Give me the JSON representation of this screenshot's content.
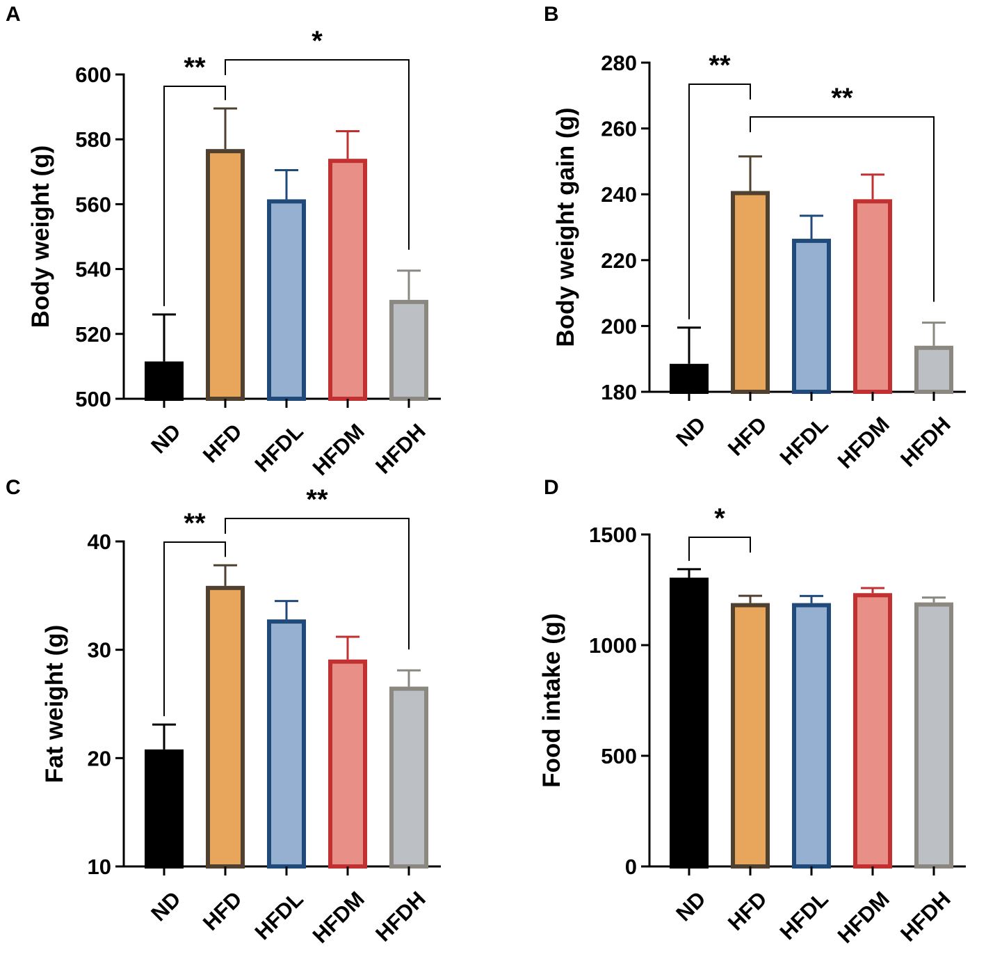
{
  "colors": {
    "ND": {
      "fill": "#000000",
      "stroke": "#000000"
    },
    "HFD": {
      "fill": "#E8A55C",
      "stroke": "#4F4030"
    },
    "HFDL": {
      "fill": "#96B0D2",
      "stroke": "#1F4A7A"
    },
    "HFDM": {
      "fill": "#E89088",
      "stroke": "#C23131"
    },
    "HFDH": {
      "fill": "#BCC0C4",
      "stroke": "#8A8880"
    }
  },
  "chart_data": [
    {
      "panel": "A",
      "type": "bar",
      "categories": [
        "ND",
        "HFD",
        "HFDL",
        "HFDM",
        "HFDH"
      ],
      "values": [
        511.5,
        577,
        561.5,
        574,
        530.5
      ],
      "errors": [
        14.5,
        12.5,
        9,
        8.5,
        9
      ],
      "ylabel": "Body weight (g)",
      "ylim": [
        500,
        600
      ],
      "yticks": [
        500,
        520,
        540,
        560,
        580,
        600
      ],
      "significance": [
        {
          "from": 0,
          "to": 1,
          "label": "**"
        },
        {
          "from": 1,
          "to": 4,
          "label": "*"
        }
      ]
    },
    {
      "panel": "B",
      "type": "bar",
      "categories": [
        "ND",
        "HFD",
        "HFDL",
        "HFDM",
        "HFDH"
      ],
      "values": [
        188.5,
        241,
        226.5,
        238.5,
        194
      ],
      "errors": [
        11,
        10.5,
        7,
        7.5,
        7
      ],
      "ylabel": "Body weight gain (g)",
      "ylim": [
        180,
        280
      ],
      "yticks": [
        180,
        200,
        220,
        240,
        260,
        280
      ],
      "significance": [
        {
          "from": 0,
          "to": 1,
          "label": "**"
        },
        {
          "from": 1,
          "to": 4,
          "label": "**"
        }
      ]
    },
    {
      "panel": "C",
      "type": "bar",
      "categories": [
        "ND",
        "HFD",
        "HFDL",
        "HFDM",
        "HFDH"
      ],
      "values": [
        20.8,
        35.9,
        32.8,
        29.1,
        26.6
      ],
      "errors": [
        2.3,
        1.9,
        1.7,
        2.1,
        1.5
      ],
      "ylabel": "Fat weight (g)",
      "ylim": [
        10,
        40
      ],
      "yticks": [
        10,
        20,
        30,
        40
      ],
      "significance": [
        {
          "from": 0,
          "to": 1,
          "label": "**"
        },
        {
          "from": 1,
          "to": 4,
          "label": "**"
        }
      ]
    },
    {
      "panel": "D",
      "type": "bar",
      "categories": [
        "ND",
        "HFD",
        "HFDL",
        "HFDM",
        "HFDH"
      ],
      "values": [
        1305,
        1190,
        1190,
        1235,
        1193
      ],
      "errors": [
        38,
        33,
        32,
        23,
        22
      ],
      "ylabel": "Food intake (g)",
      "ylim": [
        0,
        1500
      ],
      "yticks": [
        0,
        500,
        1000,
        1500
      ],
      "significance": [
        {
          "from": 0,
          "to": 1,
          "label": "*"
        }
      ]
    }
  ]
}
